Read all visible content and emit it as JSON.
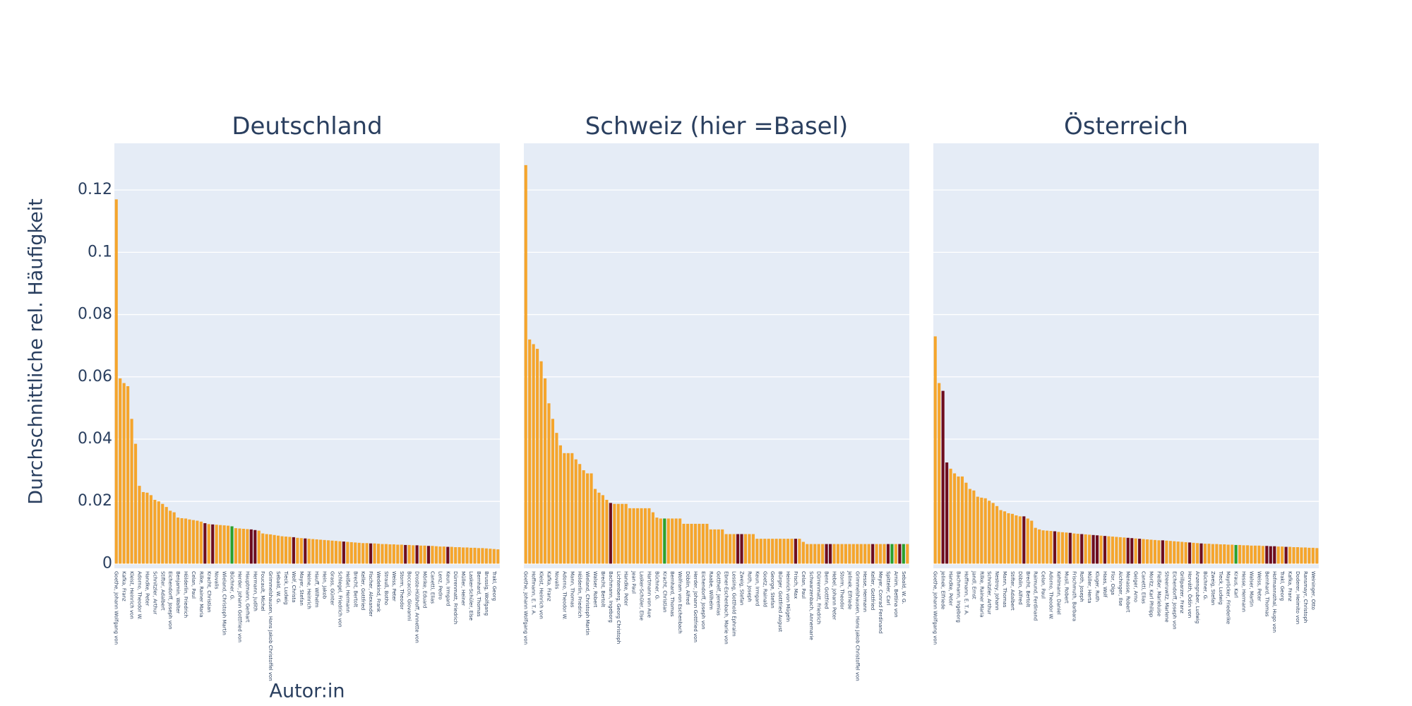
{
  "y_label": "Durchschnittliche rel. Häufigkeit",
  "x_label": "Autor:in",
  "chart_data": [
    {
      "type": "bar",
      "title": "Deutschland",
      "categories": [
        "Goethe, Johann Wolfgang von",
        null,
        "Kafka, Franz",
        null,
        "Kleist, Heinrich von",
        null,
        "Adorno, Theodor W.",
        null,
        "Handke, Peter",
        null,
        "Schnitzler, Arthur",
        null,
        "Stifter, Adalbert",
        null,
        "Eichendorff, Joseph von",
        null,
        "Benjamin, Walter",
        null,
        "Hölderlin, Friedrich",
        null,
        "Celan, Paul",
        null,
        "Rilke, Rainer Maria",
        null,
        "Kracht, Christian",
        null,
        "Novalis",
        null,
        "Wieland, Christoph Martin",
        null,
        "Büchner, G.",
        null,
        "Herder, Johann Gottfried von",
        null,
        "Hauptmann, Gerhart",
        null,
        "Hermann, Judith",
        null,
        "Foucault, Michel",
        null,
        "Grimmelshausen, Hans Jakob Christoffel von",
        null,
        "Sebald, W. G.",
        null,
        "Tieck, Ludwig",
        null,
        "Wolf, Christa",
        null,
        "Mayer, Stefan",
        null,
        "Heine, Heinrich",
        null,
        "Hauff, Wilhelm",
        null,
        "Hein, Jakob",
        null,
        "Grass, Günter",
        null,
        "Schlegel, Friedrich von",
        null,
        "Heißel, Hermann",
        null,
        "Brecht, Bertolt",
        null,
        "Keller, Gottfried",
        null,
        "Fischer, Alexander",
        null,
        "Wedekind, Frank",
        null,
        "Strauß, Botho",
        null,
        "Weiss, Peter",
        null,
        "Storm, Theodor",
        null,
        "Boccaccio, Giovanni",
        null,
        "Droste-Hülshoff, Annette von",
        null,
        "Mörike, Eduard",
        null,
        "Canetti, Elias",
        null,
        "Lenz, Pedro",
        null,
        "Keun, Irmgard",
        null,
        "Dürrenmatt, Friedrich",
        null,
        "Müller, Heiner",
        null,
        "Lasker-Schüler, Else",
        null,
        "Bernhard, Thomas",
        null,
        "Brussig, Wolfgang",
        null,
        "Trakl, Georg",
        null
      ],
      "values": [
        0.117,
        0.0595,
        0.058,
        0.057,
        0.0465,
        0.0385,
        0.025,
        0.023,
        0.0228,
        0.022,
        0.0205,
        0.02,
        0.0192,
        0.0182,
        0.017,
        0.0165,
        0.0148,
        0.0146,
        0.0145,
        0.0142,
        0.014,
        0.0138,
        0.0135,
        0.013,
        0.0127,
        0.0126,
        0.0125,
        0.0124,
        0.0123,
        0.0122,
        0.012,
        0.0114,
        0.0113,
        0.0112,
        0.0111,
        0.011,
        0.0108,
        0.0106,
        0.0097,
        0.0095,
        0.0094,
        0.0092,
        0.009,
        0.0088,
        0.0087,
        0.0086,
        0.0085,
        0.0083,
        0.0082,
        0.0081,
        0.008,
        0.0079,
        0.0078,
        0.0077,
        0.0076,
        0.0075,
        0.0074,
        0.0073,
        0.0072,
        0.0071,
        0.007,
        0.0069,
        0.0068,
        0.0067,
        0.0066,
        0.0066,
        0.0065,
        0.0065,
        0.0064,
        0.0063,
        0.0063,
        0.0062,
        0.0062,
        0.0061,
        0.0061,
        0.006,
        0.006,
        0.0059,
        0.0059,
        0.0058,
        0.0058,
        0.0057,
        0.0057,
        0.0056,
        0.0055,
        0.0055,
        0.0054,
        0.0054,
        0.0053,
        0.0053,
        0.0052,
        0.0052,
        0.0051,
        0.0051,
        0.005,
        0.005,
        0.0049,
        0.0048,
        0.0047,
        0.0046
      ],
      "colors": [
        "#f5a52c",
        "#f5a52c",
        "#f5a52c",
        "#f5a52c",
        "#f5a52c",
        "#f5a52c",
        "#f5a52c",
        "#f5a52c",
        "#f5a52c",
        "#f5a52c",
        "#f5a52c",
        "#f5a52c",
        "#f5a52c",
        "#f5a52c",
        "#f5a52c",
        "#f5a52c",
        "#f5a52c",
        "#f5a52c",
        "#f5a52c",
        "#f5a52c",
        "#f5a52c",
        "#f5a52c",
        "#f5a52c",
        "#6e0d1e",
        "#f5a52c",
        "#6e0d1e",
        "#f5a52c",
        "#f5a52c",
        "#f5a52c",
        "#f5a52c",
        "#2ca02c",
        "#f5a52c",
        "#f5a52c",
        "#f5a52c",
        "#f5a52c",
        "#6e0d1e",
        "#6e0d1e",
        "#f5a52c",
        "#f5a52c",
        "#f5a52c",
        "#f5a52c",
        "#f5a52c",
        "#f5a52c",
        "#f5a52c",
        "#f5a52c",
        "#f5a52c",
        "#6e0d1e",
        "#f5a52c",
        "#f5a52c",
        "#6e0d1e",
        "#f5a52c",
        "#f5a52c",
        "#f5a52c",
        "#f5a52c",
        "#f5a52c",
        "#f5a52c",
        "#f5a52c",
        "#f5a52c",
        "#f5a52c",
        "#6e0d1e",
        "#f5a52c",
        "#f5a52c",
        "#f5a52c",
        "#f5a52c",
        "#f5a52c",
        "#f5a52c",
        "#6e0d1e",
        "#f5a52c",
        "#f5a52c",
        "#f5a52c",
        "#f5a52c",
        "#f5a52c",
        "#f5a52c",
        "#f5a52c",
        "#f5a52c",
        "#6e0d1e",
        "#f5a52c",
        "#f5a52c",
        "#6e0d1e",
        "#f5a52c",
        "#f5a52c",
        "#6e0d1e",
        "#f5a52c",
        "#f5a52c",
        "#f5a52c",
        "#f5a52c",
        "#6e0d1e",
        "#f5a52c",
        "#f5a52c",
        "#f5a52c",
        "#f5a52c",
        "#f5a52c",
        "#f5a52c",
        "#f5a52c",
        "#f5a52c",
        "#f5a52c",
        "#f5a52c",
        "#f5a52c",
        "#f5a52c",
        "#f5a52c"
      ],
      "ylim": [
        -0.0015,
        0.135
      ],
      "yticks": [
        0,
        0.02,
        0.04,
        0.06,
        0.08,
        0.1,
        0.12
      ],
      "grid": true
    },
    {
      "type": "bar",
      "title": "Schweiz (hier =Basel)",
      "categories": [
        "Goethe, Johann Wolfgang von",
        null,
        "Hoffmann, E. T. A.",
        null,
        "Kleist, Heinrich von",
        null,
        "Kafka, Franz",
        null,
        "Novalis",
        null,
        "Adorno, Theodor W.",
        null,
        "Mann, Thomas",
        null,
        "Hölderlin, Friedrich",
        null,
        "Wieland, Christoph Martin",
        null,
        "Walser, Robert",
        null,
        "Brecht, Bertolt",
        null,
        "Bachmann, Ingeborg",
        null,
        "Lichtenberg, Georg Christoph",
        null,
        "Handke, Peter",
        null,
        "Jean Paul",
        null,
        "Lasker-Schüler, Else",
        null,
        "Hartmann von Aue",
        null,
        "Büchner, G.",
        null,
        "Kracht, Christian",
        null,
        "Bernhard, Thomas",
        null,
        "Wolfram von Eschenbach",
        null,
        "Döblin, Alfred",
        null,
        "Herder, Johann Gottfried von",
        null,
        "Eichendorff, Joseph von",
        null,
        "Raabe, Wilhelm",
        null,
        "Gotthelf, Jeremias",
        null,
        "Ebner-Eschenbach, Marie von",
        null,
        "Lessing, Gotthold Ephraim",
        null,
        "Zweig, Stefan",
        null,
        "Roth, Joseph",
        null,
        "Keun, Irmgard",
        null,
        "Goetz, Rainald",
        null,
        "George, Stefan",
        null,
        "Bürger, Gottfried August",
        null,
        "Heinrich von Mügeln",
        null,
        "Frisch, Max",
        null,
        "Celan, Paul",
        null,
        "Schwarzenbach, Annemarie",
        null,
        "Dürrenmatt, Friedrich",
        null,
        "Benn, Gottfried",
        null,
        "Hebel, Johann Peter",
        null,
        "Storm, Theodor",
        null,
        "Jelinek, Elfriede",
        null,
        "Grimmelshausen, Hans Jakob Christoffel von",
        null,
        "Hesse, Hermann",
        null,
        "Keller, Gottfried",
        null,
        "Meyer, Conrad Ferdinand",
        null,
        "Spitteler, Carl",
        null,
        "Arnim, Bettina von",
        null,
        "Sebald, W. G.",
        null
      ],
      "values": [
        0.128,
        0.072,
        0.0705,
        0.069,
        0.065,
        0.0595,
        0.0515,
        0.0465,
        0.042,
        0.038,
        0.0355,
        0.0355,
        0.0355,
        0.0335,
        0.032,
        0.03,
        0.029,
        0.029,
        0.024,
        0.0228,
        0.022,
        0.0205,
        0.0195,
        0.0192,
        0.0192,
        0.0192,
        0.0192,
        0.0178,
        0.0178,
        0.0178,
        0.0178,
        0.0178,
        0.0178,
        0.0165,
        0.0148,
        0.0145,
        0.0145,
        0.0145,
        0.0145,
        0.0145,
        0.0145,
        0.0128,
        0.0128,
        0.0128,
        0.0128,
        0.0128,
        0.0128,
        0.0128,
        0.011,
        0.011,
        0.011,
        0.011,
        0.0095,
        0.0095,
        0.0095,
        0.0095,
        0.0095,
        0.0095,
        0.0095,
        0.0095,
        0.008,
        0.008,
        0.008,
        0.008,
        0.008,
        0.008,
        0.008,
        0.008,
        0.008,
        0.008,
        0.008,
        0.008,
        0.007,
        0.0063,
        0.0063,
        0.0063,
        0.0063,
        0.0063,
        0.0063,
        0.0063,
        0.0063,
        0.0063,
        0.0063,
        0.0063,
        0.0063,
        0.0063,
        0.0063,
        0.0063,
        0.0063,
        0.0063,
        0.0063,
        0.0063,
        0.0063,
        0.0063,
        0.0063,
        0.0063,
        0.0063,
        0.0063,
        0.0063,
        0.0063
      ],
      "colors": [
        "#f5a52c",
        "#f5a52c",
        "#f5a52c",
        "#f5a52c",
        "#f5a52c",
        "#f5a52c",
        "#f5a52c",
        "#f5a52c",
        "#f5a52c",
        "#f5a52c",
        "#f5a52c",
        "#f5a52c",
        "#f5a52c",
        "#f5a52c",
        "#f5a52c",
        "#f5a52c",
        "#f5a52c",
        "#f5a52c",
        "#f5a52c",
        "#f5a52c",
        "#f5a52c",
        "#f5a52c",
        "#6e0d1e",
        "#f5a52c",
        "#f5a52c",
        "#f5a52c",
        "#f5a52c",
        "#f5a52c",
        "#f5a52c",
        "#f5a52c",
        "#f5a52c",
        "#f5a52c",
        "#f5a52c",
        "#f5a52c",
        "#f5a52c",
        "#f5a52c",
        "#2ca02c",
        "#f5a52c",
        "#f5a52c",
        "#f5a52c",
        "#f5a52c",
        "#f5a52c",
        "#f5a52c",
        "#f5a52c",
        "#f5a52c",
        "#f5a52c",
        "#f5a52c",
        "#f5a52c",
        "#f5a52c",
        "#f5a52c",
        "#f5a52c",
        "#f5a52c",
        "#f5a52c",
        "#f5a52c",
        "#f5a52c",
        "#6e0d1e",
        "#6e0d1e",
        "#f5a52c",
        "#f5a52c",
        "#f5a52c",
        "#f5a52c",
        "#f5a52c",
        "#f5a52c",
        "#f5a52c",
        "#f5a52c",
        "#f5a52c",
        "#f5a52c",
        "#f5a52c",
        "#f5a52c",
        "#f5a52c",
        "#6e0d1e",
        "#f5a52c",
        "#f5a52c",
        "#f5a52c",
        "#f5a52c",
        "#f5a52c",
        "#f5a52c",
        "#f5a52c",
        "#6e0d1e",
        "#6e0d1e",
        "#f5a52c",
        "#f5a52c",
        "#f5a52c",
        "#f5a52c",
        "#f5a52c",
        "#f5a52c",
        "#f5a52c",
        "#f5a52c",
        "#f5a52c",
        "#f5a52c",
        "#6e0d1e",
        "#f5a52c",
        "#f5a52c",
        "#f5a52c",
        "#6e0d1e",
        "#2ca02c",
        "#f5a52c",
        "#6e0d1e",
        "#2ca02c",
        "#f5a52c"
      ]
    },
    {
      "type": "bar",
      "title": "Österreich",
      "categories": [
        "Goethe, Johann Wolfgang von",
        null,
        "Jelinek, Elfriede",
        null,
        "Handke, Peter",
        null,
        "Bachmann, Ingeborg",
        null,
        "Hoffmann, E. T. A.",
        null,
        "Jandl, Ernst",
        null,
        "Rilke, Rainer Maria",
        null,
        "Schnitzler, Arthur",
        null,
        "Nestroy, Johann",
        null,
        "Mann, Thomas",
        null,
        "Stifter, Adalbert",
        null,
        "Döblin, Alfred",
        null,
        "Brecht, Bertolt",
        null,
        "Raimund, Ferdinand",
        null,
        "Celan, Paul",
        null,
        "Adorno, Theodor W.",
        null,
        "Kehlmann, Daniel",
        null,
        "Musil, Robert",
        null,
        "Frischmuth, Barbara",
        null,
        "Roth, Joseph",
        null,
        "Müller, Herta",
        null,
        "Kluger, Ruth",
        null,
        "Haas, Wolf",
        null,
        "Flor, Olga",
        null,
        "Aichinger, Ilse",
        null,
        "Menasse, Robert",
        null,
        "Geiger, Arno",
        null,
        "Canetti, Elias",
        null,
        "Moritz, Karl Philipp",
        null,
        "Fleißer, Marieluise",
        null,
        "Streeruwitz, Marlene",
        null,
        "Eichendorff, Joseph von",
        null,
        "Grillparzer, Franz",
        null,
        "Horváth, Ödön von",
        null,
        "Anzengruber, Ludwig",
        null,
        "Büchner, G.",
        null,
        "Zweig, Stefan",
        null,
        "Tieck, Ludwig",
        null,
        "Mayröcker, Friederike",
        null,
        "Kraus, Karl",
        null,
        "Hesse, Hermann",
        null,
        "Walser, Martin",
        null,
        "Weiss, Peter",
        null,
        "Bernhard, Thomas",
        null,
        "Hofmannsthal, Hugo von",
        null,
        "Trakl, Georg",
        null,
        "Kafka, Franz",
        null,
        "Doderer, Heimito von",
        null,
        "Ransmayr, Christoph",
        null,
        "Weininger, Otto",
        null
      ],
      "values": [
        0.073,
        0.058,
        0.0555,
        0.0325,
        0.0305,
        0.029,
        0.028,
        0.028,
        0.026,
        0.024,
        0.0235,
        0.0215,
        0.0212,
        0.021,
        0.0202,
        0.0195,
        0.0185,
        0.0172,
        0.0168,
        0.0162,
        0.016,
        0.0155,
        0.0152,
        0.0152,
        0.0145,
        0.0138,
        0.0115,
        0.011,
        0.0107,
        0.0106,
        0.0105,
        0.0104,
        0.0102,
        0.0101,
        0.01,
        0.0099,
        0.0097,
        0.0096,
        0.0095,
        0.0094,
        0.0093,
        0.0092,
        0.0091,
        0.009,
        0.0089,
        0.0088,
        0.0087,
        0.0086,
        0.0085,
        0.0084,
        0.0083,
        0.0082,
        0.0081,
        0.008,
        0.0079,
        0.0078,
        0.0077,
        0.0076,
        0.0075,
        0.0075,
        0.0074,
        0.0073,
        0.0072,
        0.0071,
        0.007,
        0.0069,
        0.0068,
        0.0067,
        0.0066,
        0.0065,
        0.0064,
        0.0064,
        0.0063,
        0.0063,
        0.0062,
        0.0062,
        0.0061,
        0.0061,
        0.006,
        0.006,
        0.0059,
        0.0059,
        0.0058,
        0.0058,
        0.0058,
        0.0057,
        0.0057,
        0.0056,
        0.0056,
        0.0055,
        0.0055,
        0.0054,
        0.0054,
        0.0053,
        0.0053,
        0.0052,
        0.0052,
        0.0051,
        0.0051,
        0.005
      ],
      "colors": [
        "#f5a52c",
        "#f5a52c",
        "#6e0d1e",
        "#6e0d1e",
        "#f5a52c",
        "#f5a52c",
        "#f5a52c",
        "#f5a52c",
        "#f5a52c",
        "#f5a52c",
        "#f5a52c",
        "#f5a52c",
        "#f5a52c",
        "#f5a52c",
        "#f5a52c",
        "#f5a52c",
        "#f5a52c",
        "#f5a52c",
        "#f5a52c",
        "#f5a52c",
        "#f5a52c",
        "#f5a52c",
        "#f5a52c",
        "#6e0d1e",
        "#f5a52c",
        "#f5a52c",
        "#f5a52c",
        "#f5a52c",
        "#f5a52c",
        "#f5a52c",
        "#f5a52c",
        "#6e0d1e",
        "#f5a52c",
        "#f5a52c",
        "#f5a52c",
        "#6e0d1e",
        "#f5a52c",
        "#f5a52c",
        "#6e0d1e",
        "#f5a52c",
        "#f5a52c",
        "#6e0d1e",
        "#6e0d1e",
        "#f5a52c",
        "#6e0d1e",
        "#f5a52c",
        "#f5a52c",
        "#f5a52c",
        "#f5a52c",
        "#f5a52c",
        "#6e0d1e",
        "#6e0d1e",
        "#f5a52c",
        "#6e0d1e",
        "#f5a52c",
        "#f5a52c",
        "#f5a52c",
        "#f5a52c",
        "#f5a52c",
        "#6e0d1e",
        "#f5a52c",
        "#f5a52c",
        "#f5a52c",
        "#f5a52c",
        "#f5a52c",
        "#f5a52c",
        "#6e0d1e",
        "#f5a52c",
        "#f5a52c",
        "#6e0d1e",
        "#f5a52c",
        "#f5a52c",
        "#f5a52c",
        "#f5a52c",
        "#f5a52c",
        "#f5a52c",
        "#f5a52c",
        "#f5a52c",
        "#2ca02c",
        "#f5a52c",
        "#f5a52c",
        "#f5a52c",
        "#f5a52c",
        "#f5a52c",
        "#f5a52c",
        "#f5a52c",
        "#6e0d1e",
        "#6e0d1e",
        "#6e0d1e",
        "#f5a52c",
        "#f5a52c",
        "#6e0d1e",
        "#f5a52c",
        "#f5a52c",
        "#f5a52c",
        "#f5a52c",
        "#f5a52c",
        "#f5a52c",
        "#f5a52c",
        "#f5a52c"
      ]
    }
  ]
}
